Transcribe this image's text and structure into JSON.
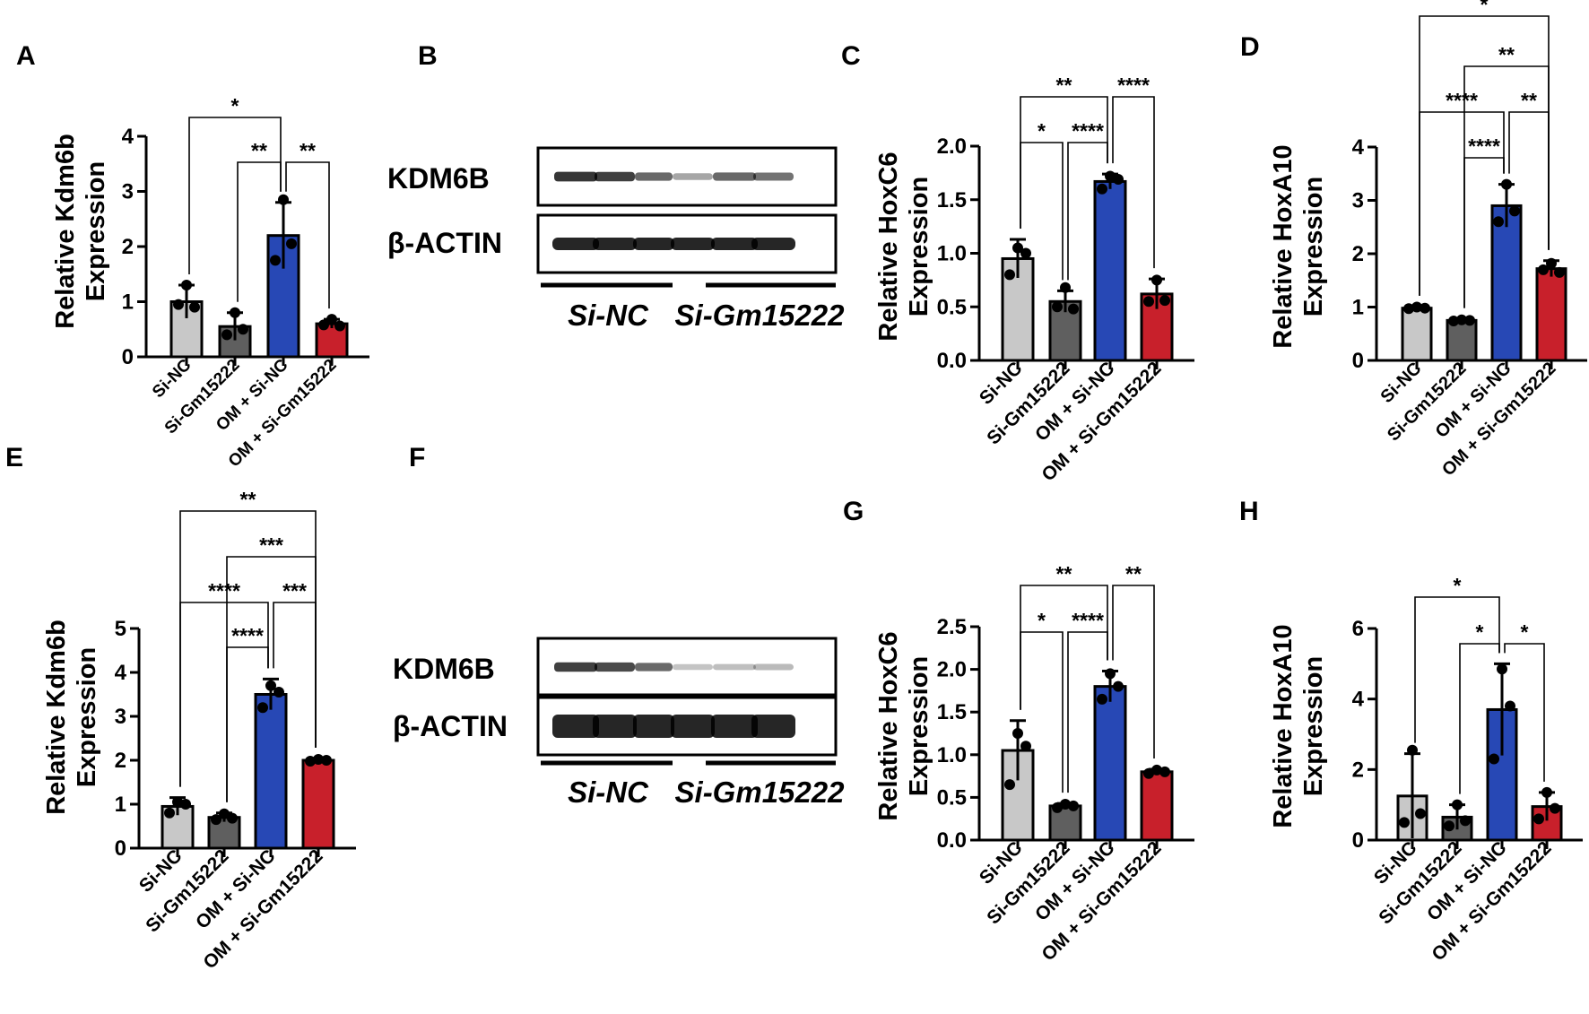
{
  "panels": {
    "A": "A",
    "B": "B",
    "C": "C",
    "D": "D",
    "E": "E",
    "F": "F",
    "G": "G",
    "H": "H"
  },
  "western_blots": [
    {
      "panel": "B",
      "bands": [
        {
          "label": "KDM6B",
          "intensity": [
            0.8,
            0.75,
            0.55,
            0.25,
            0.55,
            0.5
          ]
        },
        {
          "label": "β-ACTIN",
          "intensity": [
            1.0,
            1.0,
            1.0,
            1.0,
            1.0,
            1.0
          ]
        }
      ],
      "groups": [
        "Si-NC",
        "Si-Gm15222"
      ]
    },
    {
      "panel": "F",
      "bands": [
        {
          "label": "KDM6B",
          "intensity": [
            0.75,
            0.7,
            0.55,
            0.1,
            0.12,
            0.15
          ]
        },
        {
          "label": "β-ACTIN",
          "intensity": [
            1.0,
            1.0,
            1.0,
            1.0,
            1.0,
            1.0
          ]
        }
      ],
      "groups": [
        "Si-NC",
        "Si-Gm15222"
      ]
    }
  ],
  "chart_data": [
    {
      "panel": "A",
      "type": "bar",
      "ylabel": [
        "Relative Kdm6b",
        "Expression"
      ],
      "ylim": [
        0,
        4
      ],
      "yticks": [
        "0",
        "1",
        "2",
        "3",
        "4"
      ],
      "categories": [
        "Si-NC",
        "Si-Gm15222",
        "OM + Si-NC",
        "OM + Si-Gm15222"
      ],
      "values": [
        1.0,
        0.55,
        2.2,
        0.6
      ],
      "errors": [
        0.3,
        0.25,
        0.6,
        0.08
      ],
      "points": [
        [
          1.3,
          0.95,
          0.9
        ],
        [
          0.8,
          0.4,
          0.5
        ],
        [
          2.85,
          1.75,
          2.05
        ],
        [
          0.68,
          0.58,
          0.56
        ]
      ],
      "colors": [
        "#c8c8c8",
        "#5f5f5f",
        "#2748b5",
        "#c8202b"
      ],
      "comparisons": [
        {
          "from": 0,
          "to": 2,
          "label": "*"
        },
        {
          "from": 1,
          "to": 2,
          "label": "**"
        },
        {
          "from": 2,
          "to": 3,
          "label": "**"
        }
      ]
    },
    {
      "panel": "C",
      "type": "bar",
      "ylabel": [
        "Relative HoxC6",
        "Expression"
      ],
      "ylim": [
        0,
        2.0
      ],
      "yticks": [
        "0.0",
        "0.5",
        "1.0",
        "1.5",
        "2.0"
      ],
      "categories": [
        "Si-NC",
        "Si-Gm15222",
        "OM + Si-NC",
        "OM + Si-Gm15222"
      ],
      "values": [
        0.95,
        0.55,
        1.67,
        0.62
      ],
      "errors": [
        0.18,
        0.1,
        0.07,
        0.14
      ],
      "points": [
        [
          1.05,
          0.8,
          1.0
        ],
        [
          0.68,
          0.5,
          0.48
        ],
        [
          1.72,
          1.6,
          1.69
        ],
        [
          0.75,
          0.55,
          0.56
        ]
      ],
      "colors": [
        "#c8c8c8",
        "#5f5f5f",
        "#2748b5",
        "#c8202b"
      ],
      "comparisons": [
        {
          "from": 0,
          "to": 2,
          "label": "**"
        },
        {
          "from": 0,
          "to": 1,
          "label": "*"
        },
        {
          "from": 1,
          "to": 2,
          "label": "****"
        },
        {
          "from": 2,
          "to": 3,
          "label": "****"
        }
      ]
    },
    {
      "panel": "D",
      "type": "bar",
      "ylabel": [
        "Relative HoxA10",
        "Expression"
      ],
      "ylim": [
        0,
        4
      ],
      "yticks": [
        "0",
        "1",
        "2",
        "3",
        "4"
      ],
      "categories": [
        "Si-NC",
        "Si-Gm15222",
        "OM + Si-NC",
        "OM + Si-Gm15222"
      ],
      "values": [
        0.98,
        0.75,
        2.9,
        1.72
      ],
      "errors": [
        0.03,
        0.03,
        0.4,
        0.15
      ],
      "points": [
        [
          1.0,
          0.97,
          0.98
        ],
        [
          0.76,
          0.74,
          0.75
        ],
        [
          3.3,
          2.6,
          2.8
        ],
        [
          1.82,
          1.7,
          1.65
        ]
      ],
      "colors": [
        "#c8c8c8",
        "#5f5f5f",
        "#2748b5",
        "#c8202b"
      ],
      "comparisons": [
        {
          "from": 0,
          "to": 3,
          "label": "*"
        },
        {
          "from": 1,
          "to": 3,
          "label": "**"
        },
        {
          "from": 0,
          "to": 2,
          "label": "****"
        },
        {
          "from": 2,
          "to": 3,
          "label": "**"
        },
        {
          "from": 1,
          "to": 2,
          "label": "****"
        }
      ]
    },
    {
      "panel": "E",
      "type": "bar",
      "ylabel": [
        "Relative Kdm6b",
        "Expression"
      ],
      "ylim": [
        0,
        5
      ],
      "yticks": [
        "0",
        "1",
        "2",
        "3",
        "4",
        "5"
      ],
      "categories": [
        "Si-NC",
        "Si-Gm15222",
        "OM + Si-NC",
        "OM + Si-Gm15222"
      ],
      "values": [
        0.95,
        0.7,
        3.5,
        2.0
      ],
      "errors": [
        0.2,
        0.1,
        0.35,
        0.04
      ],
      "points": [
        [
          1.05,
          0.8,
          1.0
        ],
        [
          0.78,
          0.65,
          0.68
        ],
        [
          3.7,
          3.2,
          3.55
        ],
        [
          2.02,
          1.98,
          2.0
        ]
      ],
      "colors": [
        "#c8c8c8",
        "#5f5f5f",
        "#2748b5",
        "#c8202b"
      ],
      "comparisons": [
        {
          "from": 0,
          "to": 3,
          "label": "**"
        },
        {
          "from": 1,
          "to": 3,
          "label": "***"
        },
        {
          "from": 0,
          "to": 2,
          "label": "****"
        },
        {
          "from": 2,
          "to": 3,
          "label": "***"
        },
        {
          "from": 1,
          "to": 2,
          "label": "****"
        }
      ]
    },
    {
      "panel": "G",
      "type": "bar",
      "ylabel": [
        "Relative HoxC6",
        "Expression"
      ],
      "ylim": [
        0,
        2.5
      ],
      "yticks": [
        "0.0",
        "0.5",
        "1.0",
        "1.5",
        "2.0",
        "2.5"
      ],
      "categories": [
        "Si-NC",
        "Si-Gm15222",
        "OM + Si-NC",
        "OM + Si-Gm15222"
      ],
      "values": [
        1.05,
        0.4,
        1.8,
        0.8
      ],
      "errors": [
        0.35,
        0.03,
        0.18,
        0.03
      ],
      "points": [
        [
          1.25,
          0.65,
          1.1
        ],
        [
          0.42,
          0.38,
          0.4
        ],
        [
          1.95,
          1.65,
          1.8
        ],
        [
          0.82,
          0.78,
          0.8
        ]
      ],
      "colors": [
        "#c8c8c8",
        "#5f5f5f",
        "#2748b5",
        "#c8202b"
      ],
      "comparisons": [
        {
          "from": 0,
          "to": 2,
          "label": "**"
        },
        {
          "from": 0,
          "to": 1,
          "label": "*"
        },
        {
          "from": 1,
          "to": 2,
          "label": "****"
        },
        {
          "from": 2,
          "to": 3,
          "label": "**"
        }
      ]
    },
    {
      "panel": "H",
      "type": "bar",
      "ylabel": [
        "Relative HoxA10",
        "Expression"
      ],
      "ylim": [
        0,
        6
      ],
      "yticks": [
        "0",
        "2",
        "4",
        "6"
      ],
      "categories": [
        "Si-NC",
        "Si-Gm15222",
        "OM + Si-NC",
        "OM + Si-Gm15222"
      ],
      "values": [
        1.25,
        0.65,
        3.7,
        0.95
      ],
      "errors": [
        1.2,
        0.35,
        1.3,
        0.4
      ],
      "points": [
        [
          2.55,
          0.5,
          0.75
        ],
        [
          1.0,
          0.4,
          0.55
        ],
        [
          4.85,
          2.3,
          3.8
        ],
        [
          1.35,
          0.6,
          0.9
        ]
      ],
      "colors": [
        "#c8c8c8",
        "#5f5f5f",
        "#2748b5",
        "#c8202b"
      ],
      "comparisons": [
        {
          "from": 0,
          "to": 2,
          "label": "*"
        },
        {
          "from": 1,
          "to": 2,
          "label": "*"
        },
        {
          "from": 2,
          "to": 3,
          "label": "*"
        }
      ]
    }
  ]
}
